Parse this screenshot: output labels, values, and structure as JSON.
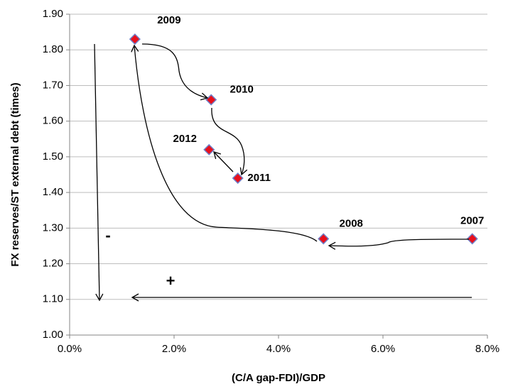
{
  "chart_data": {
    "type": "scatter",
    "x_label": "(C/A gap-FDI)/GDP",
    "y_label": "FX reserves/ST external debt (times)",
    "x": [
      7.71,
      4.86,
      1.25,
      2.71,
      3.22,
      2.67
    ],
    "values": [
      1.27,
      1.27,
      1.83,
      1.66,
      1.44,
      1.52
    ],
    "labels": [
      "2007",
      "2008",
      "2009",
      "2010",
      "2011",
      "2012"
    ],
    "color": "#e8101c",
    "edge_color": "#7080c8",
    "xlim": [
      0,
      8
    ],
    "xticks": [
      {
        "value": 0,
        "label": "0.0%"
      },
      {
        "value": 2,
        "label": "2.0%"
      },
      {
        "value": 4,
        "label": "4.0%"
      },
      {
        "value": 6,
        "label": "6.0%"
      },
      {
        "value": 8,
        "label": "8.0%"
      }
    ],
    "ylim": [
      1,
      1.9
    ],
    "yticks": [
      {
        "value": 1,
        "label": "1.00"
      },
      {
        "value": 1.1,
        "label": "1.10"
      },
      {
        "value": 1.2,
        "label": "1.20"
      },
      {
        "value": 1.3,
        "label": "1.30"
      },
      {
        "value": 1.4,
        "label": "1.40"
      },
      {
        "value": 1.5,
        "label": "1.50"
      },
      {
        "value": 1.6,
        "label": "1.60"
      },
      {
        "value": 1.7,
        "label": "1.70"
      },
      {
        "value": 1.8,
        "label": "1.80"
      },
      {
        "value": 1.9,
        "label": "1.90"
      }
    ],
    "grid": true,
    "annotations": [
      "-",
      "+"
    ]
  }
}
